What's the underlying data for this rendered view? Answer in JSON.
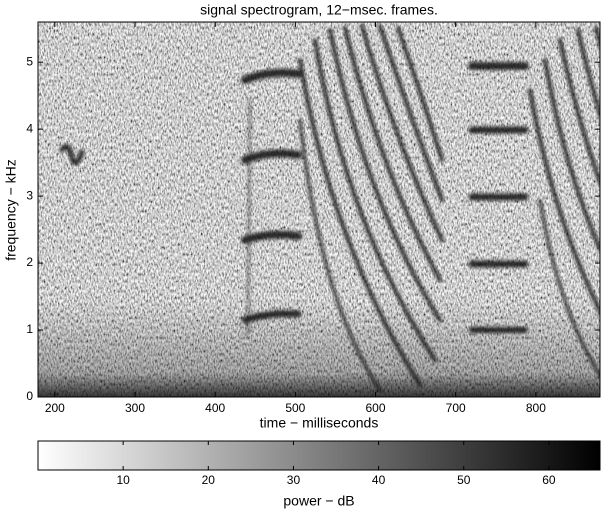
{
  "chart_data": {
    "type": "spectrogram",
    "title": "signal spectrogram, 12−msec. frames.",
    "xlabel": "time − milliseconds",
    "ylabel": "frequency − kHz",
    "xlim": [
      179,
      880
    ],
    "xticks": [
      200,
      300,
      400,
      500,
      600,
      700,
      800
    ],
    "ylim": [
      0,
      5.6
    ],
    "yticks": [
      0,
      1,
      2,
      3,
      4,
      5
    ],
    "colorbar": {
      "label": "power − dB",
      "lim": [
        0,
        66
      ],
      "ticks": [
        10,
        20,
        30,
        40,
        50,
        60
      ],
      "colors": [
        "#ffffff",
        "#000000"
      ]
    }
  }
}
